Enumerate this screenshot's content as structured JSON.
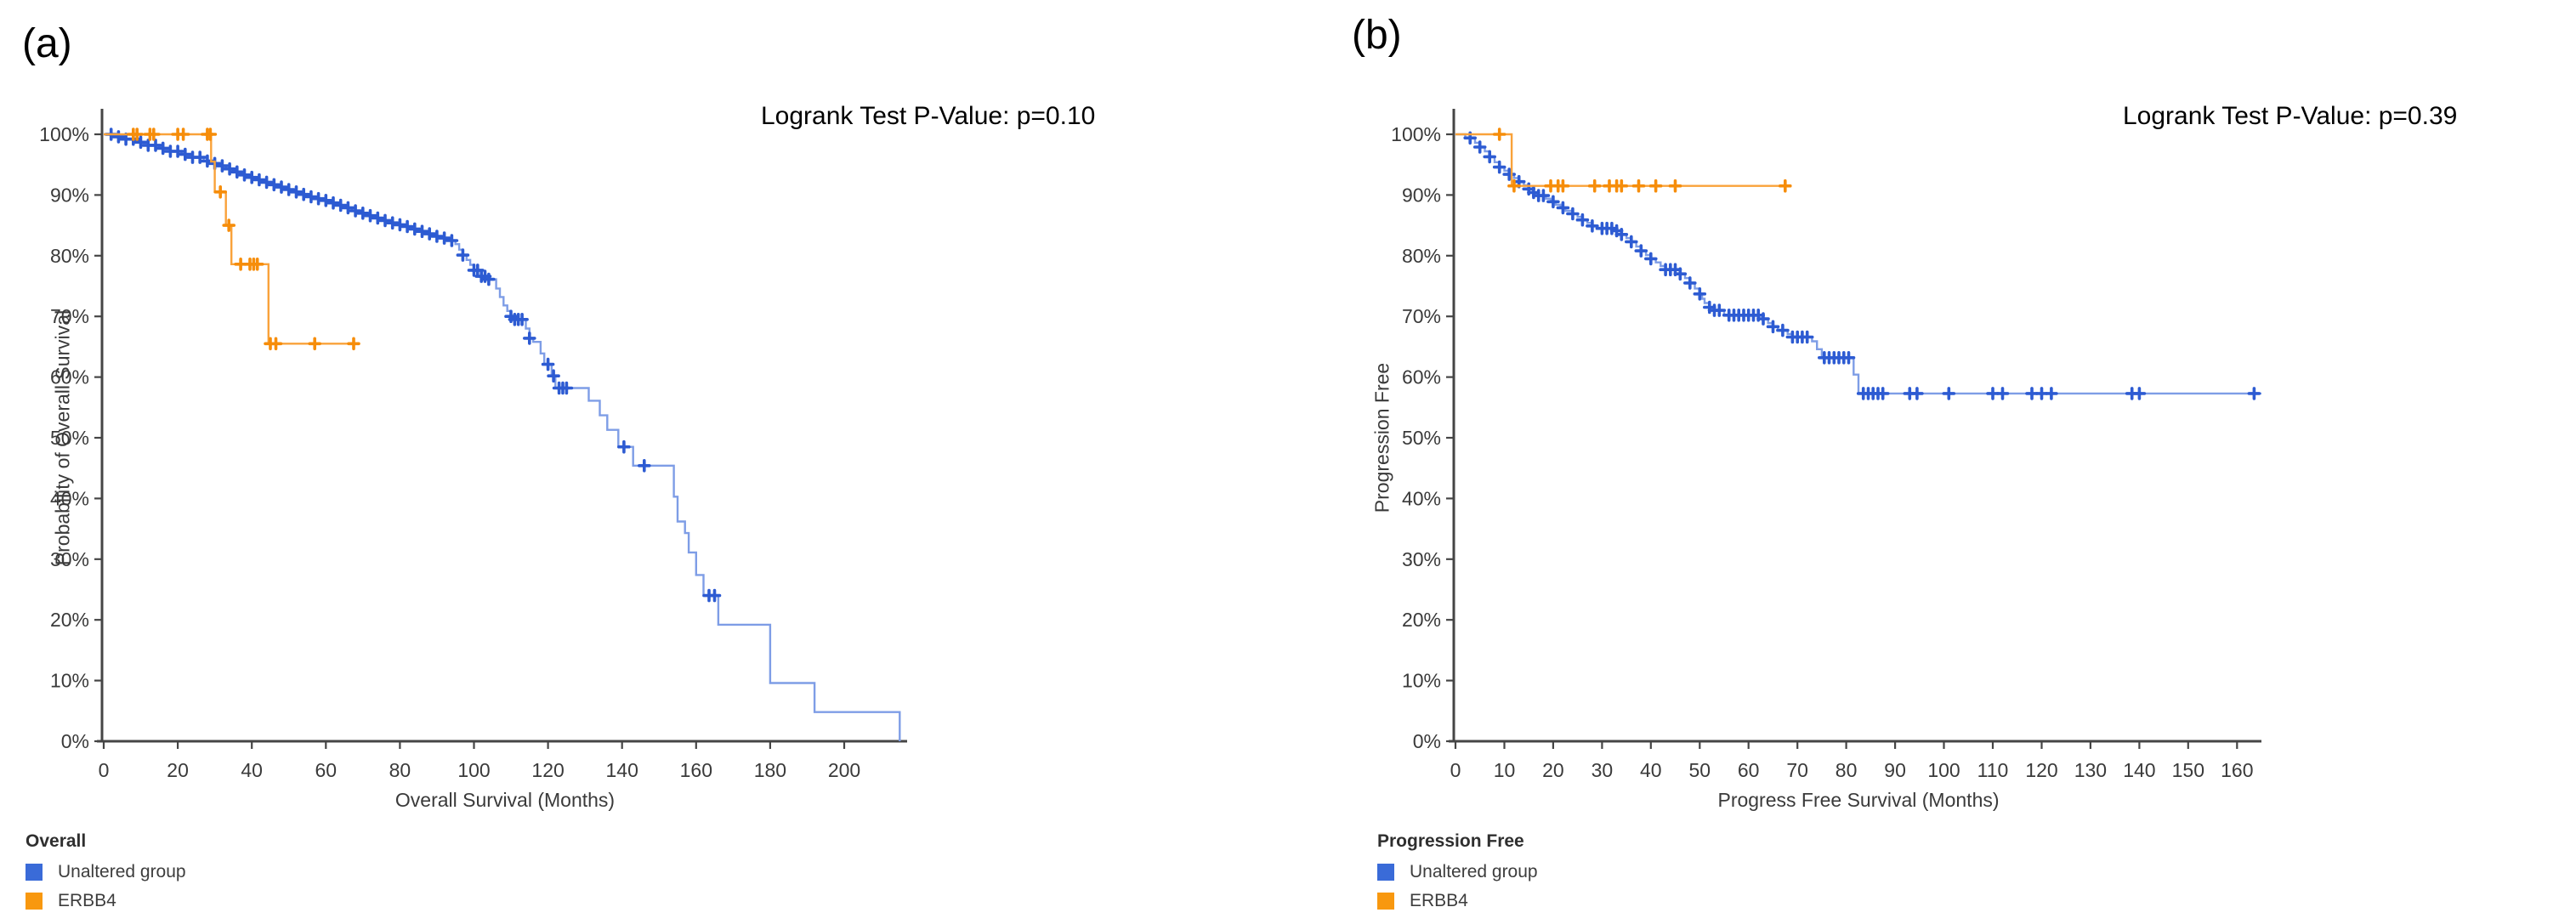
{
  "figure": {
    "background_color": "#ffffff"
  },
  "chart_data": [
    {
      "type": "line",
      "subtype": "kaplan-meier-step",
      "panel_label": "(a)",
      "annotation": "Logrank Test P-Value: p=0.10",
      "xlabel": "Overall Survival (Months)",
      "ylabel": "Probability of Overall Survival",
      "xlim": [
        0,
        217
      ],
      "ylim": [
        0,
        100
      ],
      "grid": "off",
      "xticks": [
        0,
        20,
        40,
        60,
        80,
        100,
        120,
        140,
        160,
        180,
        200
      ],
      "yticks": [
        {
          "v": 100,
          "label": "100%"
        },
        {
          "v": 90,
          "label": "90%"
        },
        {
          "v": 80,
          "label": "80%"
        },
        {
          "v": 70,
          "label": "70%"
        },
        {
          "v": 60,
          "label": "60%"
        },
        {
          "v": 50,
          "label": "50%"
        },
        {
          "v": 40,
          "label": "40%"
        },
        {
          "v": 30,
          "label": "30%"
        },
        {
          "v": 20,
          "label": "20%"
        },
        {
          "v": 10,
          "label": "10%"
        },
        {
          "v": 0,
          "label": "0%"
        }
      ],
      "legend": {
        "header": "Overall",
        "position": "bottom-left",
        "items": [
          {
            "label": "Unaltered group",
            "color": "#3a6bd8"
          },
          {
            "label": "ERBB4",
            "color": "#f8980f"
          }
        ]
      },
      "series": [
        {
          "name": "Unaltered group",
          "line_color": "#7e9de6",
          "marker_color": "#2d5bd2",
          "steps": [
            [
              0,
              100
            ],
            [
              3,
              99.6
            ],
            [
              6,
              99.2
            ],
            [
              9,
              98.7
            ],
            [
              12,
              98.2
            ],
            [
              15,
              97.7
            ],
            [
              18,
              97.2
            ],
            [
              21,
              96.7
            ],
            [
              24,
              96.2
            ],
            [
              27,
              95.6
            ],
            [
              29,
              95.2
            ],
            [
              31,
              94.8
            ],
            [
              33,
              94.3
            ],
            [
              35,
              93.8
            ],
            [
              37,
              93.3
            ],
            [
              39,
              92.9
            ],
            [
              41,
              92.5
            ],
            [
              43,
              92.1
            ],
            [
              45,
              91.7
            ],
            [
              47,
              91.3
            ],
            [
              49,
              90.9
            ],
            [
              51,
              90.5
            ],
            [
              53,
              90.1
            ],
            [
              55,
              89.7
            ],
            [
              57,
              89.4
            ],
            [
              59,
              89.1
            ],
            [
              61,
              88.7
            ],
            [
              63,
              88.3
            ],
            [
              65,
              87.9
            ],
            [
              67,
              87.4
            ],
            [
              69,
              87.0
            ],
            [
              71,
              86.6
            ],
            [
              73,
              86.2
            ],
            [
              75,
              85.8
            ],
            [
              77,
              85.4
            ],
            [
              79,
              85.1
            ],
            [
              81,
              84.8
            ],
            [
              83,
              84.4
            ],
            [
              85,
              84.0
            ],
            [
              87,
              83.6
            ],
            [
              89,
              83.2
            ],
            [
              91,
              82.9
            ],
            [
              93,
              82.5
            ],
            [
              95,
              81.9
            ],
            [
              96,
              81.0
            ],
            [
              97,
              80.1
            ],
            [
              98,
              79.3
            ],
            [
              99,
              78.5
            ],
            [
              100,
              77.6
            ],
            [
              102,
              76.6
            ],
            [
              104,
              76.1
            ],
            [
              106,
              74.6
            ],
            [
              107,
              73.2
            ],
            [
              108,
              71.8
            ],
            [
              109,
              70.9
            ],
            [
              110,
              70.0
            ],
            [
              111,
              69.5
            ],
            [
              114,
              68.0
            ],
            [
              115,
              66.4
            ],
            [
              116,
              65.8
            ],
            [
              118,
              63.9
            ],
            [
              119,
              62.1
            ],
            [
              121,
              60.2
            ],
            [
              122,
              58.2
            ],
            [
              131,
              56.1
            ],
            [
              134,
              53.7
            ],
            [
              136,
              51.3
            ],
            [
              139,
              48.5
            ],
            [
              143,
              45.4
            ],
            [
              154,
              40.3
            ],
            [
              155,
              36.2
            ],
            [
              157,
              34.3
            ],
            [
              158,
              31.1
            ],
            [
              160,
              27.4
            ],
            [
              162,
              24.0
            ],
            [
              166,
              19.2
            ],
            [
              180,
              9.6
            ],
            [
              192,
              4.8
            ],
            [
              215,
              0
            ]
          ],
          "censors": [
            2,
            4,
            6,
            8,
            10,
            12,
            14,
            16,
            18,
            20,
            22,
            24,
            26,
            28,
            30,
            32,
            34,
            36,
            38,
            40,
            42,
            44,
            46,
            48,
            50,
            52,
            54,
            56,
            58,
            60,
            62,
            64,
            66,
            68,
            70,
            72,
            74,
            76,
            78,
            80,
            82,
            84,
            86,
            88,
            90,
            92,
            94,
            97,
            100,
            101,
            102,
            103,
            104,
            110,
            111,
            112,
            113,
            115,
            120,
            121.5,
            123,
            124,
            125,
            140.5,
            146,
            163.5,
            165
          ]
        },
        {
          "name": "ERBB4",
          "line_color": "#f9a23a",
          "marker_color": "#f68d0a",
          "steps": [
            [
              0,
              100
            ],
            [
              29,
              95.5
            ],
            [
              30,
              90.5
            ],
            [
              33,
              85
            ],
            [
              34.5,
              78.6
            ],
            [
              44.5,
              65.5
            ],
            [
              68,
              65.5
            ]
          ],
          "censors": [
            8,
            9,
            12.5,
            13.5,
            20,
            21.5,
            28,
            28.8,
            31.5,
            33.8,
            37,
            39.5,
            40.5,
            41.5,
            45,
            46.5,
            57,
            67.5
          ]
        }
      ]
    },
    {
      "type": "line",
      "subtype": "kaplan-meier-step",
      "panel_label": "(b)",
      "annotation": "Logrank Test P-Value: p=0.39",
      "xlabel": "Progress Free Survival (Months)",
      "ylabel": "Progression Free",
      "xlim": [
        0,
        165
      ],
      "ylim": [
        0,
        100
      ],
      "grid": "off",
      "xticks": [
        0,
        10,
        20,
        30,
        40,
        50,
        60,
        70,
        80,
        90,
        100,
        110,
        120,
        130,
        140,
        150,
        160
      ],
      "yticks": [
        {
          "v": 100,
          "label": "100%"
        },
        {
          "v": 90,
          "label": "90%"
        },
        {
          "v": 80,
          "label": "80%"
        },
        {
          "v": 70,
          "label": "70%"
        },
        {
          "v": 60,
          "label": "60%"
        },
        {
          "v": 50,
          "label": "50%"
        },
        {
          "v": 40,
          "label": "40%"
        },
        {
          "v": 30,
          "label": "30%"
        },
        {
          "v": 20,
          "label": "20%"
        },
        {
          "v": 10,
          "label": "10%"
        },
        {
          "v": 0,
          "label": "0%"
        }
      ],
      "legend": {
        "header": "Progression Free",
        "position": "bottom-left",
        "items": [
          {
            "label": "Unaltered group",
            "color": "#3a6bd8"
          },
          {
            "label": "ERBB4",
            "color": "#f8980f"
          }
        ]
      },
      "series": [
        {
          "name": "Unaltered group",
          "line_color": "#7e9de6",
          "marker_color": "#2d5bd2",
          "steps": [
            [
              0,
              100
            ],
            [
              2,
              99.4
            ],
            [
              4,
              98.6
            ],
            [
              5,
              97.9
            ],
            [
              6,
              97.2
            ],
            [
              7,
              96.3
            ],
            [
              8,
              95.4
            ],
            [
              9,
              94.6
            ],
            [
              10,
              94.0
            ],
            [
              11,
              93.4
            ],
            [
              12,
              92.8
            ],
            [
              13,
              92.2
            ],
            [
              14,
              91.6
            ],
            [
              15,
              91.0
            ],
            [
              16,
              90.4
            ],
            [
              17,
              89.9
            ],
            [
              18.5,
              89.4
            ],
            [
              19.5,
              88.9
            ],
            [
              20.5,
              88.4
            ],
            [
              21.5,
              87.9
            ],
            [
              22.5,
              87.4
            ],
            [
              24,
              86.9
            ],
            [
              25,
              86.4
            ],
            [
              26,
              85.9
            ],
            [
              27,
              85.4
            ],
            [
              28,
              84.9
            ],
            [
              29,
              84.5
            ],
            [
              33,
              84.1
            ],
            [
              34,
              83.5
            ],
            [
              35,
              82.9
            ],
            [
              36,
              82.3
            ],
            [
              37,
              81.5
            ],
            [
              38,
              80.8
            ],
            [
              39,
              80.1
            ],
            [
              40,
              79.5
            ],
            [
              41,
              78.9
            ],
            [
              42,
              78.3
            ],
            [
              43,
              77.7
            ],
            [
              46,
              77.0
            ],
            [
              47,
              76.3
            ],
            [
              48,
              75.5
            ],
            [
              49,
              74.6
            ],
            [
              50,
              73.7
            ],
            [
              50.5,
              72.9
            ],
            [
              51,
              72.2
            ],
            [
              52,
              71.5
            ],
            [
              53,
              71.0
            ],
            [
              55,
              70.2
            ],
            [
              63,
              69.6
            ],
            [
              64,
              68.9
            ],
            [
              65,
              68.3
            ],
            [
              66,
              67.7
            ],
            [
              68,
              67.1
            ],
            [
              69,
              66.6
            ],
            [
              73,
              65.9
            ],
            [
              74,
              64.6
            ],
            [
              75,
              63.2
            ],
            [
              81.5,
              60.4
            ],
            [
              82.5,
              57.3
            ],
            [
              165,
              57.3
            ]
          ],
          "censors": [
            3,
            5,
            7,
            9,
            11,
            13,
            15,
            16,
            17,
            18,
            20,
            22,
            24,
            26,
            28,
            30,
            31,
            32,
            33,
            34,
            36,
            38,
            40,
            43,
            44,
            45,
            46,
            48,
            50,
            52,
            53,
            54,
            56,
            57,
            58,
            59,
            60,
            61,
            62,
            63,
            65,
            67,
            69,
            70,
            71,
            72,
            75.5,
            76.5,
            77.5,
            78.5,
            79.5,
            80.5,
            83.5,
            84.5,
            85.5,
            86.5,
            87.5,
            93,
            94.5,
            101,
            110,
            112,
            118,
            120,
            122,
            138.5,
            140,
            163.5
          ]
        },
        {
          "name": "ERBB4",
          "line_color": "#f9a23a",
          "marker_color": "#f68d0a",
          "steps": [
            [
              0,
              100
            ],
            [
              11.5,
              91.5
            ],
            [
              68,
              91.5
            ]
          ],
          "censors": [
            9,
            12,
            19.5,
            21,
            22,
            28.5,
            31.5,
            33,
            34,
            37.5,
            41,
            45,
            67.5
          ]
        }
      ]
    }
  ]
}
